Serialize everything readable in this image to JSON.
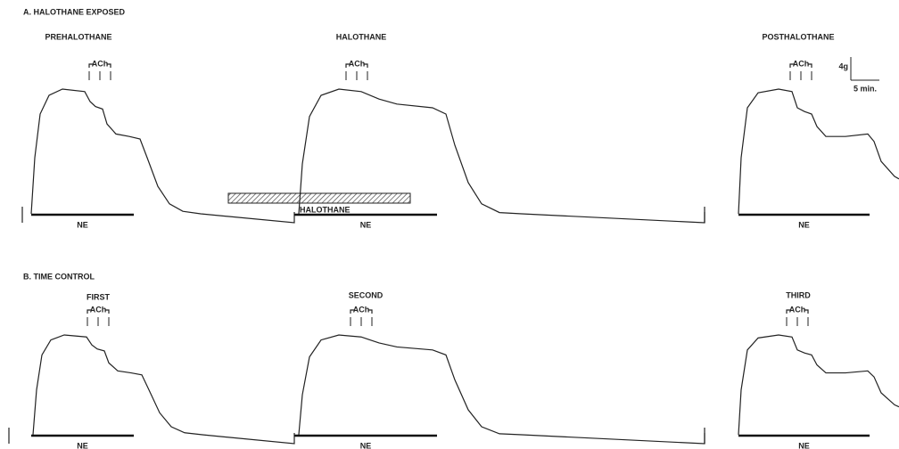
{
  "panels": [
    {
      "label": "A. HALOTHANE EXPOSED",
      "segments": [
        {
          "title": "PREHALOTHANE",
          "stimulus": "ACh",
          "agonist": "NE"
        },
        {
          "title": "HALOTHANE",
          "stimulus": "ACh",
          "agonist": "NE",
          "exposure": "HALOTHANE"
        },
        {
          "title": "POSTHALOTHANE",
          "stimulus": "ACh",
          "agonist": "NE"
        }
      ]
    },
    {
      "label": "B. TIME CONTROL",
      "segments": [
        {
          "title": "FIRST",
          "stimulus": "ACh",
          "agonist": "NE"
        },
        {
          "title": "SECOND",
          "stimulus": "ACh",
          "agonist": "NE"
        },
        {
          "title": "THIRD",
          "stimulus": "ACh",
          "agonist": "NE"
        }
      ]
    }
  ],
  "scale_bar": {
    "force": "4g",
    "time": "5 min."
  }
}
